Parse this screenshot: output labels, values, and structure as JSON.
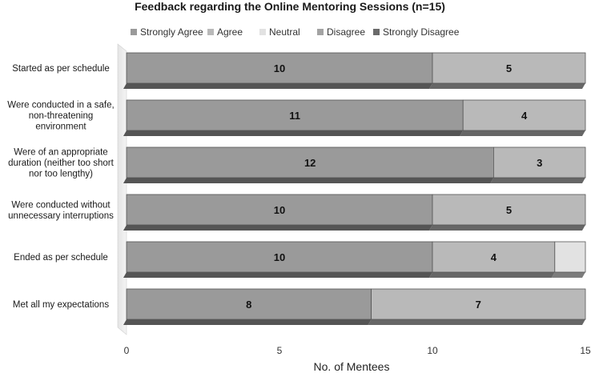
{
  "chart_data": {
    "type": "bar",
    "orientation": "horizontal",
    "stacked": true,
    "three_d": true,
    "title": "Feedback regarding the Online Mentoring Sessions (n=15)",
    "xlabel": "No. of Mentees",
    "ylabel": "",
    "xlim": [
      0,
      15
    ],
    "xticks": [
      0,
      5,
      10,
      15
    ],
    "grid": false,
    "legend_position": "top",
    "categories": [
      [
        "Started as per schedule"
      ],
      [
        "Were conducted in a safe,",
        "non-threatening",
        "environment"
      ],
      [
        "Were of an appropriate",
        "duration (neither too short",
        "nor too lengthy)"
      ],
      [
        "Were conducted without",
        "unnecessary interruptions"
      ],
      [
        "Ended as per schedule"
      ],
      [
        "Met all my expectations"
      ]
    ],
    "series": [
      {
        "name": "Strongly Agree",
        "color": "#9a9a9a",
        "values": [
          10,
          11,
          12,
          10,
          10,
          8
        ]
      },
      {
        "name": "Agree",
        "color": "#b9b9b9",
        "values": [
          5,
          4,
          3,
          5,
          4,
          7
        ]
      },
      {
        "name": "Neutral",
        "color": "#e2e2e2",
        "values": [
          0,
          0,
          0,
          0,
          1,
          0
        ]
      },
      {
        "name": "Disagree",
        "color": "#a3a3a3",
        "values": [
          0,
          0,
          0,
          0,
          0,
          0
        ]
      },
      {
        "name": "Strongly Disagree",
        "color": "#6a6a6a",
        "values": [
          0,
          0,
          0,
          0,
          0,
          0
        ]
      }
    ],
    "data_labels": [
      [
        "10",
        "5"
      ],
      [
        "11",
        "4"
      ],
      [
        "12",
        "3"
      ],
      [
        "10",
        "5"
      ],
      [
        "10",
        "4"
      ],
      [
        "8",
        "7"
      ]
    ]
  }
}
